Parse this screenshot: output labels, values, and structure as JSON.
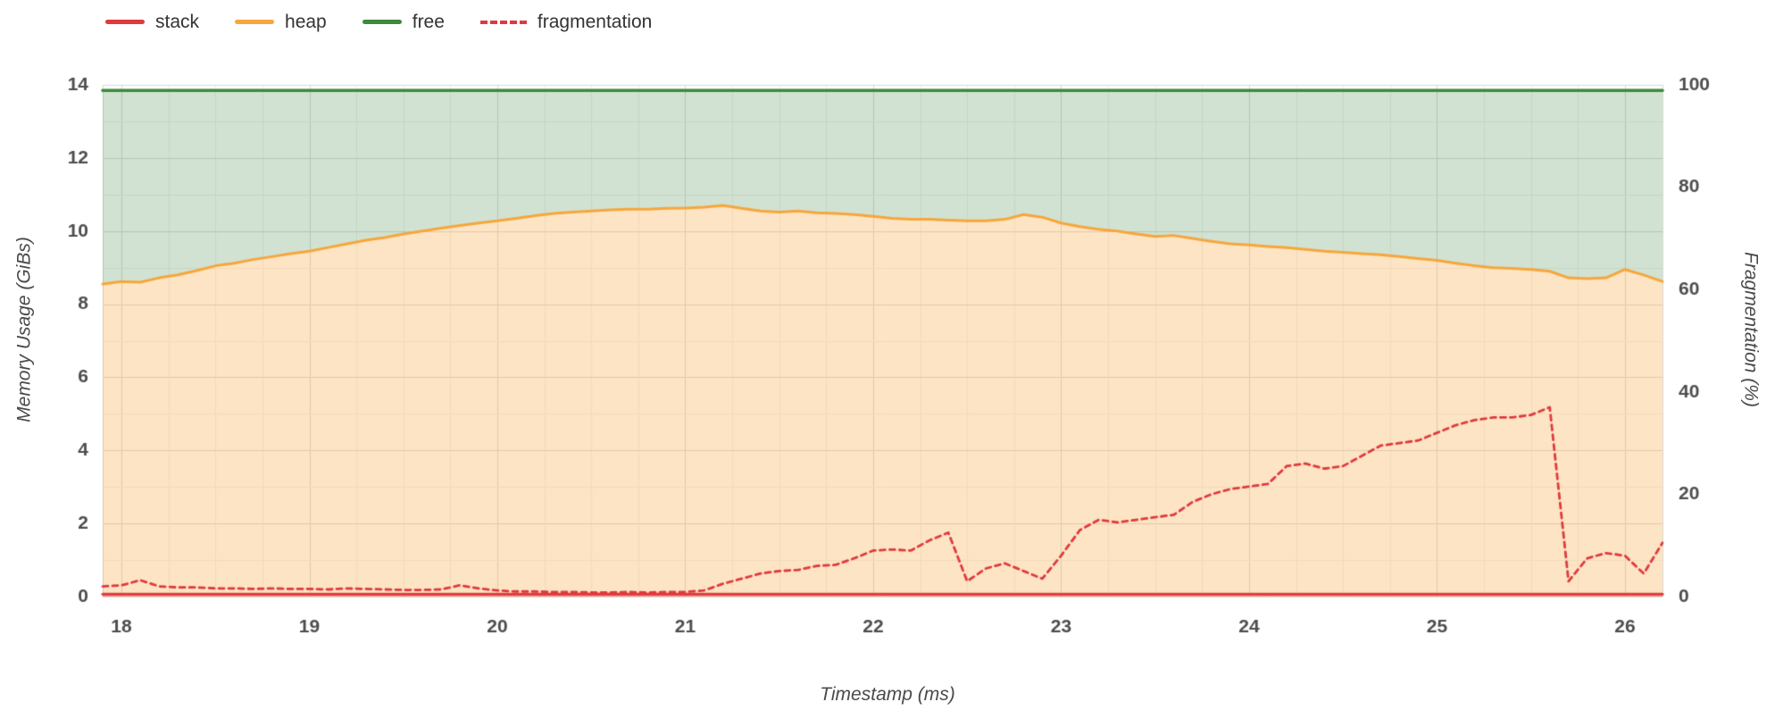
{
  "legend": {
    "items": [
      {
        "label": "stack",
        "color": "#e0393e",
        "style": "solid"
      },
      {
        "label": "heap",
        "color": "#f6a63c",
        "style": "solid"
      },
      {
        "label": "free",
        "color": "#3c8a3c",
        "style": "solid"
      },
      {
        "label": "fragmentation",
        "color": "#e0393e",
        "style": "dashed"
      }
    ]
  },
  "axes": {
    "left_title": "Memory Usage (GiBs)",
    "right_title": "Fragmentation (%)",
    "x_title": "Timestamp (ms)"
  },
  "chart_data": {
    "type": "area",
    "x0": 17.9,
    "dx": 0.1,
    "x_ticks": [
      18,
      19,
      20,
      21,
      22,
      23,
      24,
      25,
      26
    ],
    "left_ticks": [
      0,
      2,
      4,
      6,
      8,
      10,
      12,
      14
    ],
    "left_range": [
      0,
      14
    ],
    "right_ticks": [
      0,
      20,
      40,
      60,
      80,
      100
    ],
    "right_range": [
      0,
      100
    ],
    "total_gib": 13.85,
    "stack_gib": 0.07,
    "series": {
      "heap": [
        8.55,
        8.62,
        8.6,
        8.72,
        8.8,
        8.92,
        9.05,
        9.12,
        9.22,
        9.3,
        9.38,
        9.45,
        9.55,
        9.65,
        9.75,
        9.82,
        9.92,
        10.0,
        10.08,
        10.15,
        10.22,
        10.28,
        10.35,
        10.42,
        10.48,
        10.52,
        10.55,
        10.58,
        10.6,
        10.6,
        10.62,
        10.63,
        10.65,
        10.7,
        10.62,
        10.55,
        10.52,
        10.55,
        10.5,
        10.48,
        10.45,
        10.4,
        10.35,
        10.32,
        10.32,
        10.3,
        10.28,
        10.28,
        10.32,
        10.45,
        10.38,
        10.22,
        10.12,
        10.05,
        10.0,
        9.92,
        9.85,
        9.88,
        9.8,
        9.72,
        9.65,
        9.62,
        9.58,
        9.55,
        9.5,
        9.45,
        9.42,
        9.38,
        9.35,
        9.3,
        9.25,
        9.2,
        9.12,
        9.05,
        9.0,
        8.98,
        8.95,
        8.9,
        8.72,
        8.7,
        8.72,
        8.95,
        8.8,
        8.62
      ],
      "fragmentation_pct": [
        2.0,
        2.2,
        3.2,
        2.0,
        1.8,
        1.8,
        1.6,
        1.6,
        1.5,
        1.6,
        1.5,
        1.5,
        1.4,
        1.6,
        1.5,
        1.4,
        1.3,
        1.3,
        1.4,
        2.2,
        1.6,
        1.2,
        1.0,
        1.0,
        0.9,
        0.9,
        0.8,
        0.8,
        0.9,
        0.8,
        0.9,
        0.9,
        1.2,
        2.5,
        3.5,
        4.5,
        5.0,
        5.2,
        6.0,
        6.2,
        7.5,
        9.0,
        9.2,
        9.0,
        11.0,
        12.5,
        3.0,
        5.5,
        6.5,
        5.0,
        3.5,
        8.0,
        13.0,
        15.0,
        14.5,
        15.0,
        15.5,
        16.0,
        18.5,
        20.0,
        21.0,
        21.5,
        22.0,
        25.5,
        26.0,
        25.0,
        25.5,
        27.5,
        29.5,
        30.0,
        30.5,
        32.0,
        33.5,
        34.5,
        35.0,
        35.0,
        35.5,
        37.0,
        3.0,
        7.5,
        8.5,
        8.0,
        4.5,
        10.5
      ]
    },
    "colors": {
      "stack": "#e0393e",
      "heap": "#f6a63c",
      "free": "#3c8a3c",
      "fragmentation": "#e0393e",
      "heap_fill": "rgba(246,166,60,0.30)",
      "free_fill": "rgba(76,140,74,0.25)",
      "stack_fill": "rgba(224,57,62,0.40)",
      "tick_label": "#4d4d4d",
      "grid_major": "#d9d9d9",
      "grid_minor": "#efefef"
    },
    "dash": [
      6,
      5
    ]
  }
}
